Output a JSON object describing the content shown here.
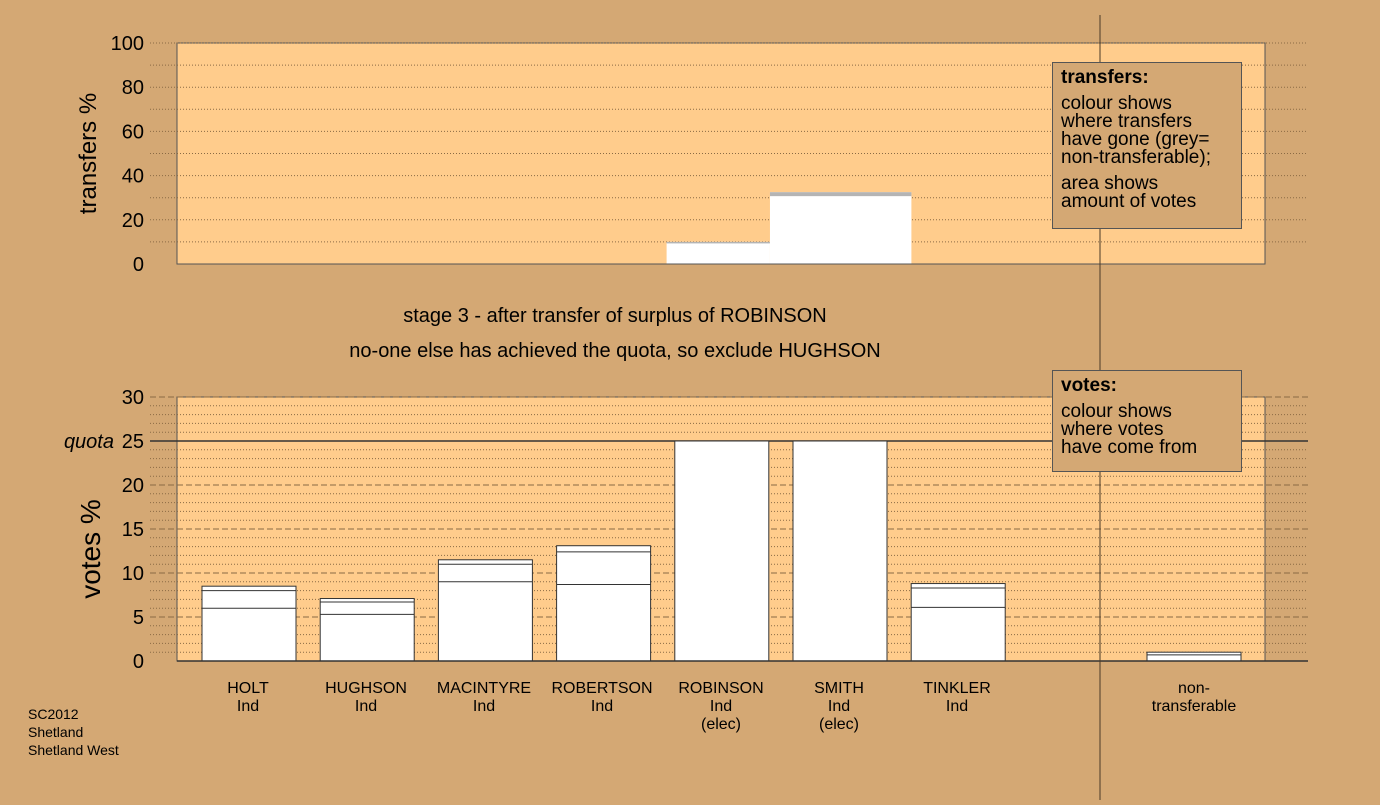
{
  "stage_text": {
    "line1": "stage 3 - after transfer of surplus of ROBINSON",
    "line2": "no-one else has achieved the quota, so exclude HUGHSON"
  },
  "legend_transfers": {
    "title": "transfers:",
    "lines": [
      "colour shows",
      "where transfers",
      "have gone (grey=",
      "non-transferable);"
    ],
    "lines2": [
      "area shows",
      "amount of votes"
    ]
  },
  "legend_votes": {
    "title": "votes:",
    "lines": [
      "colour shows",
      "where votes",
      "have come from"
    ]
  },
  "footer": [
    "SC2012",
    "Shetland",
    "Shetland West"
  ],
  "colors": {
    "background": "#d4a874",
    "plot_area": "#ffcc8c",
    "bar_fill": "#ffffff",
    "non_transferable": "#b4b4b4"
  },
  "chart_data": [
    {
      "type": "bar",
      "ylabel": "transfers %",
      "ylim": [
        0,
        100
      ],
      "yticks": [
        0,
        20,
        40,
        60,
        80,
        100
      ],
      "grid": true,
      "blocks": [
        {
          "from_pct": 45,
          "to_pct": 54.5,
          "value": 10,
          "grey_top": 0.5
        },
        {
          "from_pct": 54.5,
          "to_pct": 67.5,
          "value": 32.5,
          "grey_top": 1.8
        }
      ]
    },
    {
      "type": "bar",
      "ylabel": "votes %",
      "ylim": [
        0,
        30
      ],
      "yticks": [
        0,
        5,
        10,
        15,
        20,
        25,
        30
      ],
      "quota": 25,
      "quota_label": "quota",
      "grid": true,
      "categories": [
        {
          "name": "HOLT",
          "party": "Ind",
          "note": "",
          "value": 8.5,
          "segments": [
            6.0,
            8.0,
            8.5
          ]
        },
        {
          "name": "HUGHSON",
          "party": "Ind",
          "note": "",
          "value": 7.1,
          "segments": [
            5.3,
            6.7,
            7.1
          ]
        },
        {
          "name": "MACINTYRE",
          "party": "Ind",
          "note": "",
          "value": 11.5,
          "segments": [
            9.0,
            11.0,
            11.5
          ]
        },
        {
          "name": "ROBERTSON",
          "party": "Ind",
          "note": "",
          "value": 13.1,
          "segments": [
            8.7,
            12.4,
            13.1
          ]
        },
        {
          "name": "ROBINSON",
          "party": "Ind",
          "note": "(elec)",
          "value": 25,
          "segments": [
            25
          ]
        },
        {
          "name": "SMITH",
          "party": "Ind",
          "note": "(elec)",
          "value": 25,
          "segments": [
            25
          ]
        },
        {
          "name": "TINKLER",
          "party": "Ind",
          "note": "",
          "value": 8.8,
          "segments": [
            6.1,
            8.3,
            8.8
          ]
        }
      ],
      "non_transferable": {
        "name": "non-",
        "name2": "transferable",
        "value": 1.0,
        "segments": [
          0.7,
          1.0
        ]
      }
    }
  ]
}
